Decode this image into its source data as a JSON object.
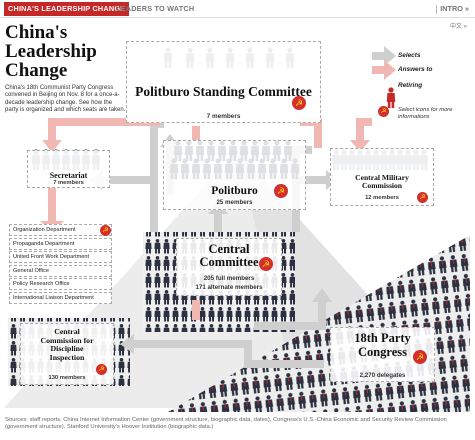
{
  "nav": {
    "tab_active": "CHINA'S LEADERSHIP CHANGE",
    "tab_leaders": "LEADERS TO WATCH",
    "intro": "INTRO »",
    "lang": "中文 »"
  },
  "header": {
    "title": "China's Leadership Change",
    "intro": "China's 18th Communist Party Congress convened in Beijing on Nov. 8 for a once-a-decade leadership change. See how the party is organized and which seats are taken."
  },
  "legend": {
    "selects": "Selects",
    "answers_to": "Answers to",
    "retiring": "Retiring",
    "select_icons": "Select icons for more informations"
  },
  "bodies": {
    "psc": {
      "name": "Politburo Standing Committee",
      "count": "7 members"
    },
    "politburo": {
      "name": "Politburo",
      "count": "25 members"
    },
    "secretariat": {
      "name": "Secretariat",
      "count": "7 members"
    },
    "cmc": {
      "name": "Central Military Commission",
      "count": "12 members"
    },
    "cc": {
      "name": "Central Committee",
      "count1": "205 full members",
      "count2": "171 alternate members"
    },
    "ccdi": {
      "name": "Central Commission for Discipline Inspection",
      "count": "130 members"
    },
    "congress": {
      "name": "18th Party Congress",
      "count": "2,270 delegates"
    }
  },
  "departments": [
    "Organization Department",
    "Propaganda Department",
    "United Front Work Department",
    "General Office",
    "Policy Research Office",
    "International Liaison Department"
  ],
  "sources": "Sources: staff reports, China Internet Information Center (government structure, biographic data, dates), Congress's U.S.-China Economic and Security Review Commission (government structure), Stanford University's Hoover Institution (biographic data.)",
  "colors": {
    "accent": "#c62828",
    "figure_dark": "#2b3140",
    "tie": "#c62828",
    "arrow_grey": "#cfcfcf",
    "arrow_pink": "#f1b7b3"
  }
}
